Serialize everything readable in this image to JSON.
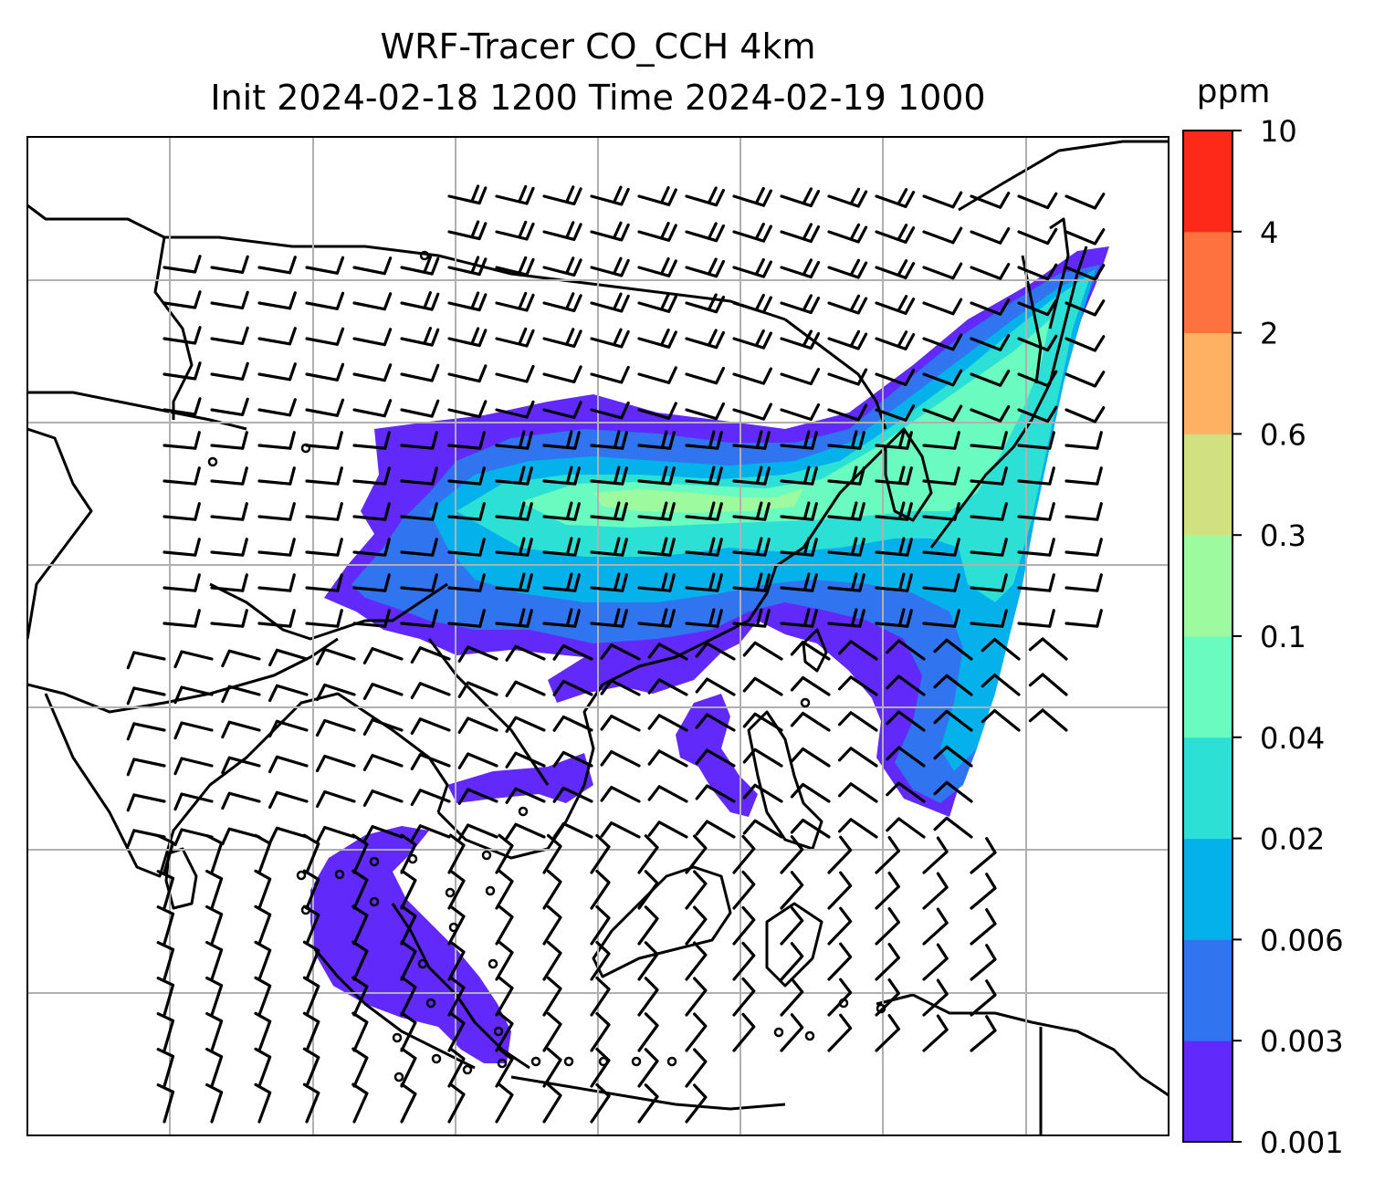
{
  "title": {
    "line1": "WRF-Tracer CO_CCH 4km",
    "line2": "Init 2024-02-18 1200 Time 2024-02-19 1000"
  },
  "colorbar": {
    "unit": "ppm",
    "ticks": [
      "0.001",
      "0.003",
      "0.006",
      "0.02",
      "0.04",
      "0.1",
      "0.3",
      "0.6",
      "2",
      "4",
      "10"
    ],
    "colors": [
      "#6229fb",
      "#3174f0",
      "#04b1ea",
      "#2de0d6",
      "#69fbbf",
      "#9dfa9f",
      "#d1e081",
      "#feb063",
      "#fe7240",
      "#fe2918"
    ]
  },
  "map": {
    "overlay": "wind-barbs",
    "coastline_color": "#000000",
    "gridline_color": "#b0b0b0"
  }
}
